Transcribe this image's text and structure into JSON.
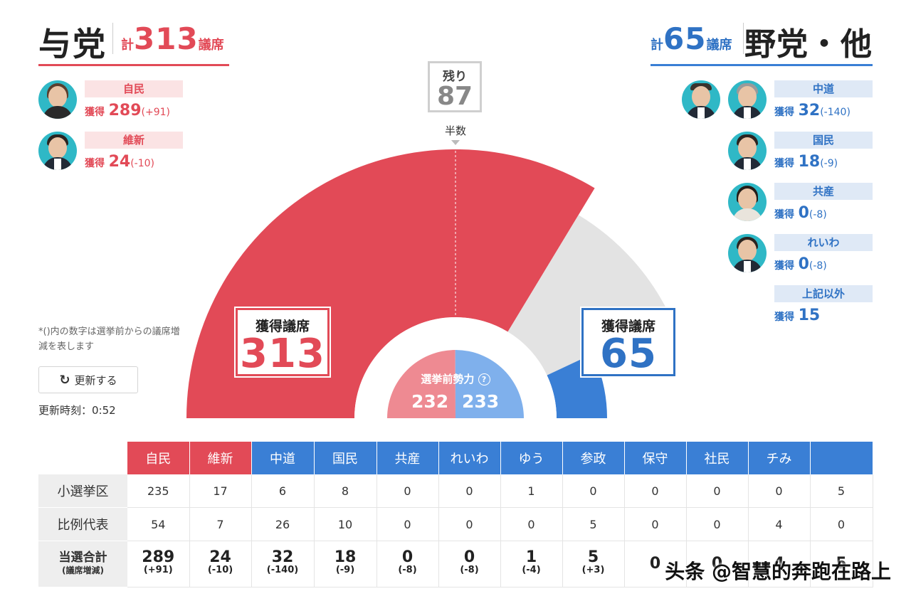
{
  "ruling": {
    "name": "与党",
    "total_prefix": "計",
    "total": "313",
    "total_suffix": "議席"
  },
  "opposition": {
    "name": "野党・他",
    "total_prefix": "計",
    "total": "65",
    "total_suffix": "議席"
  },
  "won_label": "獲得",
  "ruling_parties": [
    {
      "name": "自民",
      "won": "289",
      "delta": "(+91)"
    },
    {
      "name": "維新",
      "won": "24",
      "delta": "(-10)"
    }
  ],
  "opposition_parties": [
    {
      "name": "中道",
      "won": "32",
      "delta": "(-140)"
    },
    {
      "name": "国民",
      "won": "18",
      "delta": "(-9)"
    },
    {
      "name": "共産",
      "won": "0",
      "delta": "(-8)"
    },
    {
      "name": "れいわ",
      "won": "0",
      "delta": "(-8)"
    },
    {
      "name": "上記以外",
      "won": "15",
      "delta": ""
    }
  ],
  "note": "*()内の数字は選挙前からの議席増減を表します",
  "update_button": "更新する",
  "update_time": "更新時刻：0:52",
  "remaining": {
    "label": "残り",
    "value": "87"
  },
  "half_label": "半数",
  "seat_box_label": "獲得議席",
  "previous": {
    "label": "選挙前勢力",
    "ruling": "232",
    "opposition": "233"
  },
  "colors": {
    "ruling": "#e24a57",
    "opposition": "#3a7fd5",
    "remaining": "#e3e3e3",
    "ruling_prev": "#ee8a92",
    "opposition_prev": "#7fb0ec"
  },
  "chart_data": {
    "type": "pie",
    "subtype": "half-donut",
    "total_seats": 465,
    "segments": [
      {
        "name": "与党",
        "value": 313
      },
      {
        "name": "残り",
        "value": 87
      },
      {
        "name": "野党・他",
        "value": 65
      }
    ],
    "inner_previous": [
      {
        "name": "与党",
        "value": 232
      },
      {
        "name": "野党・他",
        "value": 233
      }
    ]
  },
  "table": {
    "columns": [
      "自民",
      "維新",
      "中道",
      "国民",
      "共産",
      "れいわ",
      "ゆう",
      "参政",
      "保守",
      "社民",
      "チみ",
      ""
    ],
    "column_groups": [
      "ruling",
      "ruling",
      "opp",
      "opp",
      "opp",
      "opp",
      "opp",
      "opp",
      "opp",
      "opp",
      "opp",
      "opp"
    ],
    "row_district": {
      "label": "小選挙区",
      "values": [
        "235",
        "17",
        "6",
        "8",
        "0",
        "0",
        "1",
        "0",
        "0",
        "0",
        "0",
        "5"
      ]
    },
    "row_pr": {
      "label": "比例代表",
      "values": [
        "54",
        "7",
        "26",
        "10",
        "0",
        "0",
        "0",
        "5",
        "0",
        "0",
        "4",
        "0"
      ]
    },
    "row_total": {
      "label": "当選合計",
      "sublabel": "(議席増減)",
      "values": [
        "289",
        "24",
        "32",
        "18",
        "0",
        "0",
        "1",
        "5",
        "0",
        "0",
        "4",
        "5"
      ],
      "deltas": [
        "(+91)",
        "(-10)",
        "(-140)",
        "(-9)",
        "(-8)",
        "(-8)",
        "(-4)",
        "(+3)",
        "",
        "",
        "",
        ""
      ]
    }
  },
  "watermark": "头条 @智慧的奔跑在路上"
}
